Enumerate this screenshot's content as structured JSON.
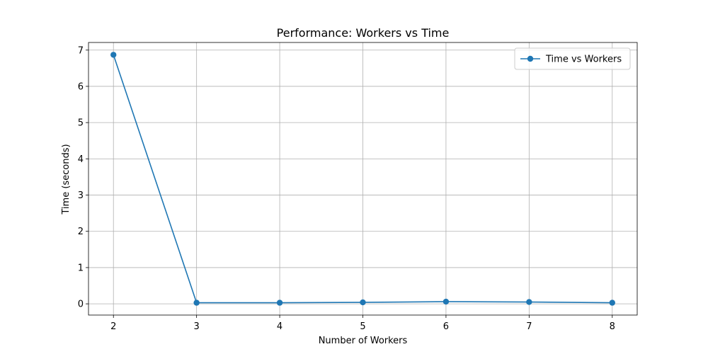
{
  "chart_data": {
    "type": "line",
    "title": "Performance: Workers vs Time",
    "xlabel": "Number of Workers",
    "ylabel": "Time (seconds)",
    "x": [
      2,
      3,
      4,
      5,
      6,
      7,
      8
    ],
    "series": [
      {
        "name": "Time vs Workers",
        "values": [
          6.87,
          0.03,
          0.03,
          0.04,
          0.06,
          0.05,
          0.03
        ],
        "color": "#1f77b4",
        "marker": "circle"
      }
    ],
    "xlim": [
      1.7,
      8.3
    ],
    "ylim": [
      -0.31,
      7.21
    ],
    "xticks": [
      2,
      3,
      4,
      5,
      6,
      7,
      8
    ],
    "yticks": [
      0,
      1,
      2,
      3,
      4,
      5,
      6,
      7
    ],
    "grid": true,
    "legend_position": "top-right"
  }
}
